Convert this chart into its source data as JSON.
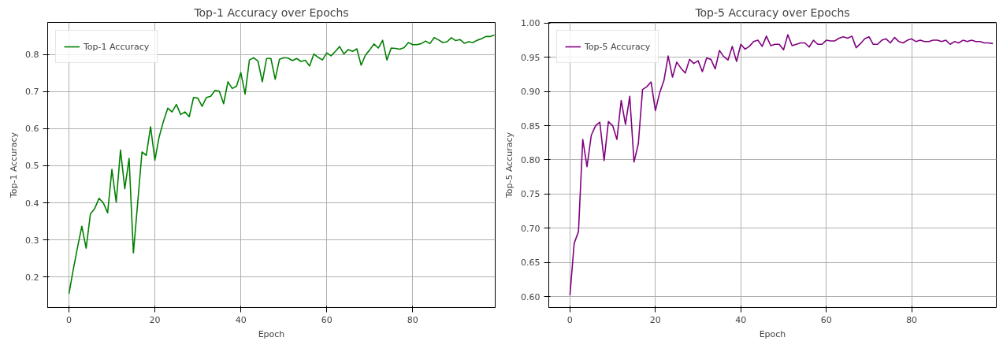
{
  "chart_data": [
    {
      "type": "line",
      "title": "Top-1 Accuracy over Epochs",
      "xlabel": "Epoch",
      "ylabel": "Top-1 Accuracy",
      "xlim": [
        -4.95,
        99.2
      ],
      "ylim": [
        0.118,
        0.886
      ],
      "xticks": [
        0,
        20,
        40,
        60,
        80
      ],
      "yticks": [
        0.2,
        0.3,
        0.4,
        0.5,
        0.6,
        0.7,
        0.8
      ],
      "grid": true,
      "legend": "top left",
      "line_style": "solid",
      "x": [
        0,
        1,
        2,
        3,
        4,
        5,
        6,
        7,
        8,
        9,
        10,
        11,
        12,
        13,
        14,
        15,
        16,
        17,
        18,
        19,
        20,
        21,
        22,
        23,
        24,
        25,
        26,
        27,
        28,
        29,
        30,
        31,
        32,
        33,
        34,
        35,
        36,
        37,
        38,
        39,
        40,
        41,
        42,
        43,
        44,
        45,
        46,
        47,
        48,
        49,
        50,
        51,
        52,
        53,
        54,
        55,
        56,
        57,
        58,
        59,
        60,
        61,
        62,
        63,
        64,
        65,
        66,
        67,
        68,
        69,
        70,
        71,
        72,
        73,
        74,
        75,
        76,
        77,
        78,
        79,
        80,
        81,
        82,
        83,
        84,
        85,
        86,
        87,
        88,
        89,
        90,
        91,
        92,
        93,
        94,
        95,
        96,
        97,
        98,
        99
      ],
      "series": [
        {
          "name": "Top-1 Accuracy",
          "color": "#008000",
          "values": [
            0.155,
            0.22,
            0.28,
            0.337,
            0.278,
            0.37,
            0.385,
            0.412,
            0.4,
            0.373,
            0.49,
            0.402,
            0.542,
            0.438,
            0.52,
            0.265,
            0.4,
            0.537,
            0.528,
            0.605,
            0.515,
            0.578,
            0.62,
            0.655,
            0.645,
            0.665,
            0.638,
            0.645,
            0.632,
            0.684,
            0.682,
            0.66,
            0.684,
            0.687,
            0.703,
            0.701,
            0.667,
            0.726,
            0.708,
            0.714,
            0.751,
            0.693,
            0.785,
            0.791,
            0.782,
            0.726,
            0.789,
            0.789,
            0.733,
            0.787,
            0.791,
            0.79,
            0.783,
            0.789,
            0.781,
            0.784,
            0.769,
            0.801,
            0.792,
            0.785,
            0.804,
            0.796,
            0.808,
            0.821,
            0.801,
            0.813,
            0.808,
            0.815,
            0.771,
            0.798,
            0.812,
            0.828,
            0.817,
            0.838,
            0.785,
            0.817,
            0.816,
            0.814,
            0.818,
            0.832,
            0.826,
            0.826,
            0.829,
            0.836,
            0.829,
            0.845,
            0.839,
            0.832,
            0.834,
            0.845,
            0.837,
            0.84,
            0.83,
            0.834,
            0.832,
            0.838,
            0.842,
            0.848,
            0.848,
            0.852
          ]
        }
      ]
    },
    {
      "type": "line",
      "title": "Top-5 Accuracy over Epochs",
      "xlabel": "Epoch",
      "ylabel": "Top-5 Accuracy",
      "xlim": [
        -4.95,
        99.8
      ],
      "ylim": [
        0.584,
        1.001
      ],
      "xticks": [
        0,
        20,
        40,
        60,
        80
      ],
      "yticks": [
        {
          "value": 0.6,
          "label": "0.60"
        },
        {
          "value": 0.65,
          "label": "0.65"
        },
        {
          "value": 0.7,
          "label": "0.70"
        },
        {
          "value": 0.75,
          "label": "0.75"
        },
        {
          "value": 0.8,
          "label": "0.80"
        },
        {
          "value": 0.85,
          "label": "0.85"
        },
        {
          "value": 0.9,
          "label": "0.90"
        },
        {
          "value": 0.95,
          "label": "0.95"
        },
        {
          "value": 1.0,
          "label": "1.00"
        }
      ],
      "grid": true,
      "legend": "top left",
      "line_style": "solid",
      "x": [
        0,
        1,
        2,
        3,
        4,
        5,
        6,
        7,
        8,
        9,
        10,
        11,
        12,
        13,
        14,
        15,
        16,
        17,
        18,
        19,
        20,
        21,
        22,
        23,
        24,
        25,
        26,
        27,
        28,
        29,
        30,
        31,
        32,
        33,
        34,
        35,
        36,
        37,
        38,
        39,
        40,
        41,
        42,
        43,
        44,
        45,
        46,
        47,
        48,
        49,
        50,
        51,
        52,
        53,
        54,
        55,
        56,
        57,
        58,
        59,
        60,
        61,
        62,
        63,
        64,
        65,
        66,
        67,
        68,
        69,
        70,
        71,
        72,
        73,
        74,
        75,
        76,
        77,
        78,
        79,
        80,
        81,
        82,
        83,
        84,
        85,
        86,
        87,
        88,
        89,
        90,
        91,
        92,
        93,
        94,
        95,
        96,
        97,
        98,
        99
      ],
      "series": [
        {
          "name": "Top-5 Accuracy",
          "color": "#800080",
          "values": [
            0.602,
            0.678,
            0.695,
            0.83,
            0.79,
            0.836,
            0.85,
            0.855,
            0.799,
            0.856,
            0.85,
            0.83,
            0.887,
            0.852,
            0.893,
            0.797,
            0.823,
            0.903,
            0.907,
            0.914,
            0.872,
            0.898,
            0.916,
            0.952,
            0.921,
            0.943,
            0.934,
            0.927,
            0.947,
            0.941,
            0.945,
            0.929,
            0.949,
            0.947,
            0.933,
            0.96,
            0.951,
            0.946,
            0.966,
            0.944,
            0.969,
            0.962,
            0.966,
            0.973,
            0.975,
            0.966,
            0.981,
            0.967,
            0.969,
            0.969,
            0.961,
            0.983,
            0.967,
            0.969,
            0.971,
            0.971,
            0.965,
            0.975,
            0.969,
            0.969,
            0.975,
            0.974,
            0.974,
            0.978,
            0.98,
            0.978,
            0.981,
            0.964,
            0.97,
            0.977,
            0.98,
            0.969,
            0.969,
            0.975,
            0.977,
            0.971,
            0.979,
            0.973,
            0.971,
            0.975,
            0.977,
            0.973,
            0.975,
            0.973,
            0.973,
            0.975,
            0.975,
            0.973,
            0.975,
            0.969,
            0.973,
            0.971,
            0.975,
            0.973,
            0.975,
            0.973,
            0.973,
            0.971,
            0.971,
            0.97
          ]
        }
      ]
    }
  ]
}
